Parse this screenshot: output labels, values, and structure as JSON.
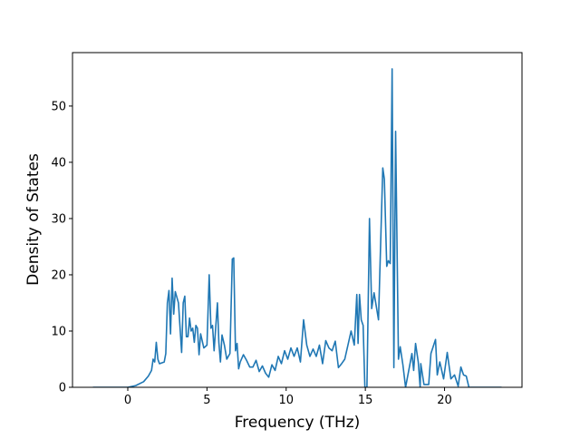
{
  "chart_data": {
    "type": "line",
    "xlabel": "Frequency (THz)",
    "ylabel": "Density of States",
    "color": "#1f77b4",
    "x": [
      -2.2,
      0,
      0.5,
      1.0,
      1.3,
      1.5,
      1.6,
      1.7,
      1.8,
      1.9,
      2.0,
      2.3,
      2.4,
      2.5,
      2.6,
      2.7,
      2.8,
      2.9,
      3.0,
      3.2,
      3.4,
      3.5,
      3.6,
      3.7,
      3.8,
      3.9,
      4.0,
      4.1,
      4.2,
      4.3,
      4.4,
      4.5,
      4.6,
      4.8,
      5.0,
      5.14,
      5.25,
      5.35,
      5.45,
      5.66,
      5.75,
      5.85,
      5.95,
      6.1,
      6.25,
      6.45,
      6.6,
      6.69,
      6.8,
      6.9,
      7.0,
      7.1,
      7.3,
      7.5,
      7.7,
      7.9,
      8.1,
      8.3,
      8.5,
      8.7,
      8.9,
      9.1,
      9.3,
      9.5,
      9.7,
      9.9,
      10.1,
      10.3,
      10.5,
      10.7,
      10.9,
      11.1,
      11.3,
      11.5,
      11.7,
      11.9,
      12.1,
      12.3,
      12.5,
      12.7,
      12.9,
      13.1,
      13.3,
      13.5,
      13.7,
      13.9,
      14.1,
      14.3,
      14.46,
      14.54,
      14.63,
      14.74,
      14.86,
      14.97,
      15.1,
      15.26,
      15.4,
      15.55,
      15.83,
      16.1,
      16.2,
      16.35,
      16.45,
      16.57,
      16.69,
      16.8,
      16.91,
      17.09,
      17.2,
      17.37,
      17.54,
      17.94,
      18.05,
      18.17,
      18.34,
      18.46,
      18.5,
      18.7,
      19.0,
      19.14,
      19.43,
      19.54,
      19.7,
      19.94,
      20.17,
      20.4,
      20.63,
      20.86,
      21.03,
      21.2,
      21.37,
      21.54,
      23.6
    ],
    "values": [
      0,
      0,
      0.3,
      1,
      2,
      3,
      5,
      4.5,
      8,
      5,
      4.2,
      4.5,
      6,
      15,
      17.2,
      9.5,
      19.4,
      13,
      17,
      15,
      6.2,
      15,
      16.2,
      9,
      9,
      12.3,
      10,
      10.5,
      8,
      11,
      10.5,
      5.8,
      9.5,
      7,
      7.5,
      20,
      10.5,
      11,
      6.5,
      15,
      8,
      4.5,
      9.3,
      7.5,
      5,
      6,
      22.8,
      23,
      6.5,
      7.8,
      3.3,
      4.5,
      5.8,
      4.8,
      3.6,
      3.6,
      4.8,
      2.8,
      3.8,
      2.5,
      1.8,
      4,
      3,
      5.5,
      4.2,
      6.5,
      5,
      7,
      5.5,
      7,
      4.5,
      12,
      7.5,
      5.5,
      6.8,
      5.5,
      7.5,
      4.2,
      8.3,
      7,
      6.5,
      8.2,
      3.5,
      4.2,
      5,
      7.5,
      10,
      7.5,
      16.5,
      7.8,
      16.5,
      12,
      11,
      0,
      0,
      30,
      14,
      16.8,
      12,
      39,
      37,
      21.5,
      22.5,
      22,
      56.6,
      3.5,
      45.5,
      5,
      7.2,
      4,
      0,
      6,
      3,
      7.8,
      4.5,
      0,
      4.2,
      0.5,
      0.5,
      6,
      8.5,
      2.2,
      4.5,
      1.5,
      6.2,
      1.5,
      2.2,
      0.2,
      3.6,
      2.2,
      2,
      0,
      0
    ],
    "xlim": [
      -3.49,
      24.89
    ],
    "ylim": [
      0,
      59.5
    ],
    "xticks": [
      0,
      5,
      10,
      15,
      20
    ],
    "yticks": [
      0,
      10,
      20,
      30,
      40,
      50
    ]
  }
}
